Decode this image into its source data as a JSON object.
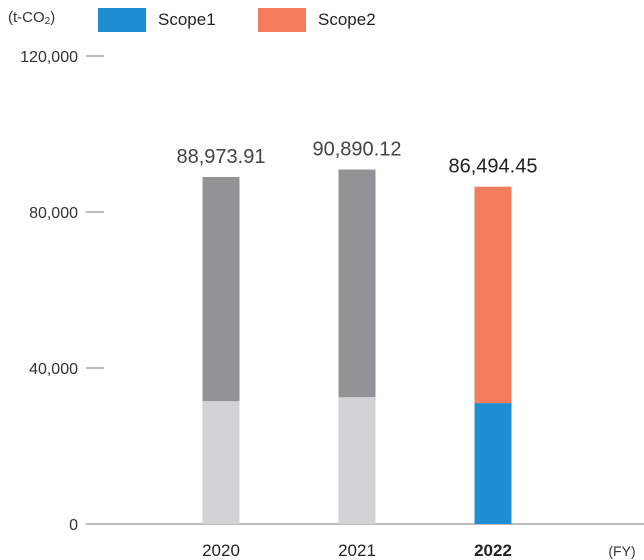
{
  "unit_label": "(t-CO",
  "unit_sub": "2",
  "unit_close": ")",
  "legend": [
    {
      "name": "Scope1",
      "color": "#1f8dd1"
    },
    {
      "name": "Scope2",
      "color": "#f27c5c"
    }
  ],
  "chart_data": {
    "type": "bar",
    "stacked": true,
    "categories": [
      "2020",
      "2021",
      "2022"
    ],
    "series": [
      {
        "name": "Scope1",
        "values": [
          31500,
          32500,
          31000
        ]
      },
      {
        "name": "Scope2",
        "values": [
          57473.91,
          58390.12,
          55494.45
        ]
      }
    ],
    "totals": [
      "88,973.91",
      "90,890.12",
      "86,494.45"
    ],
    "highlight_category": "2022",
    "muted_colors": {
      "Scope1": "#d2d3d5",
      "Scope2": "#929396"
    },
    "y_ticks": [
      0,
      40000,
      80000,
      120000
    ],
    "y_tick_labels": [
      "0",
      "40,000",
      "80,000",
      "120,000"
    ],
    "ylim": [
      0,
      120000
    ],
    "xlabel": "(FY)",
    "legend_position": "top-left"
  }
}
